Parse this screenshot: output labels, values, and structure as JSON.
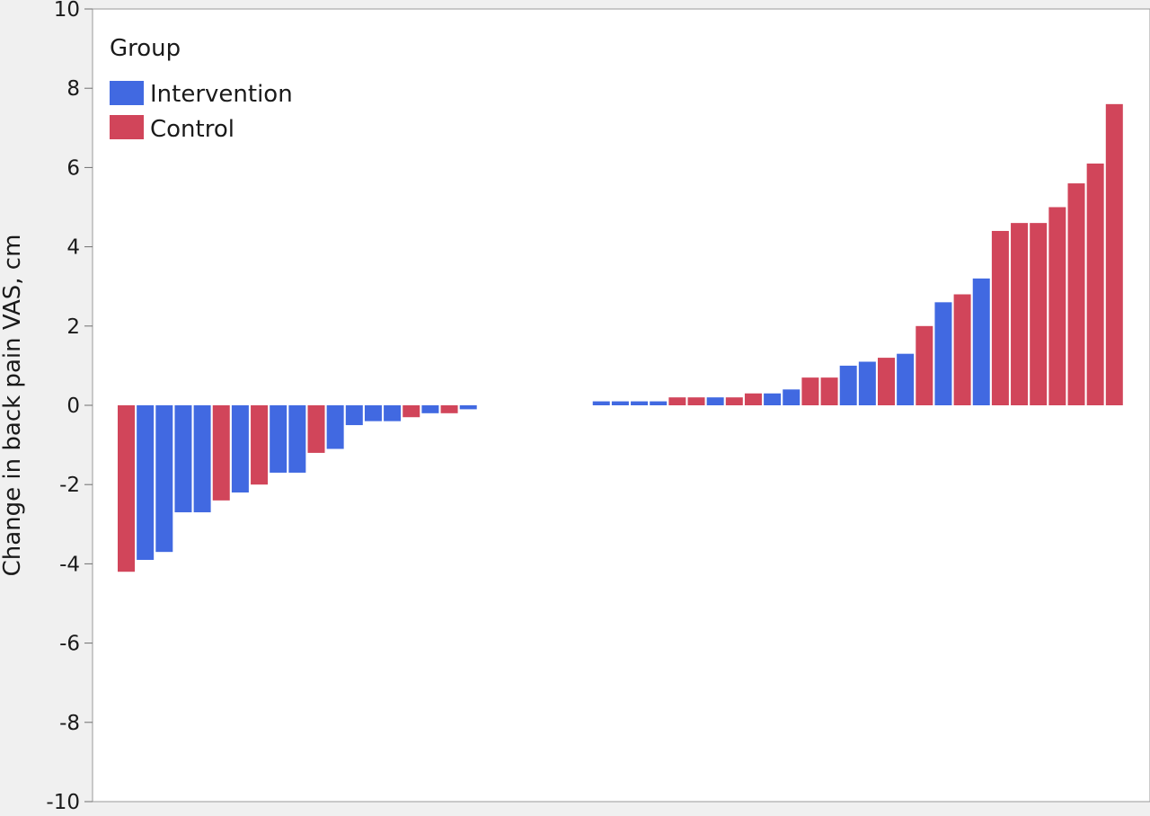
{
  "chart_data": {
    "type": "bar",
    "title": "",
    "xlabel": "",
    "ylabel": "Change in back pain VAS, cm",
    "ylim": [
      -10,
      10
    ],
    "yticks": [
      10,
      8,
      6,
      4,
      2,
      0,
      -2,
      -4,
      -6,
      -8,
      -10
    ],
    "grid": false,
    "legend": {
      "title": "Group",
      "placement": "top-left",
      "entries": [
        {
          "name": "Intervention",
          "color": "#4169e1"
        },
        {
          "name": "Control",
          "color": "#d1455a"
        }
      ]
    },
    "series": [
      {
        "name": "Intervention",
        "color": "#4169e1"
      },
      {
        "name": "Control",
        "color": "#d1455a"
      }
    ],
    "bars": [
      {
        "value": -4.2,
        "group": "Control"
      },
      {
        "value": -3.9,
        "group": "Intervention"
      },
      {
        "value": -3.7,
        "group": "Intervention"
      },
      {
        "value": -2.7,
        "group": "Intervention"
      },
      {
        "value": -2.7,
        "group": "Intervention"
      },
      {
        "value": -2.4,
        "group": "Control"
      },
      {
        "value": -2.2,
        "group": "Intervention"
      },
      {
        "value": -2.0,
        "group": "Control"
      },
      {
        "value": -1.7,
        "group": "Intervention"
      },
      {
        "value": -1.7,
        "group": "Intervention"
      },
      {
        "value": -1.2,
        "group": "Control"
      },
      {
        "value": -1.1,
        "group": "Intervention"
      },
      {
        "value": -0.5,
        "group": "Intervention"
      },
      {
        "value": -0.4,
        "group": "Intervention"
      },
      {
        "value": -0.4,
        "group": "Intervention"
      },
      {
        "value": -0.3,
        "group": "Control"
      },
      {
        "value": -0.2,
        "group": "Intervention"
      },
      {
        "value": -0.2,
        "group": "Control"
      },
      {
        "value": -0.1,
        "group": "Intervention"
      },
      {
        "value": 0,
        "group": "Intervention"
      },
      {
        "value": 0,
        "group": "Intervention"
      },
      {
        "value": 0,
        "group": "Intervention"
      },
      {
        "value": 0,
        "group": "Intervention"
      },
      {
        "value": 0,
        "group": "Intervention"
      },
      {
        "value": 0,
        "group": "Intervention"
      },
      {
        "value": 0.1,
        "group": "Intervention"
      },
      {
        "value": 0.1,
        "group": "Intervention"
      },
      {
        "value": 0.1,
        "group": "Intervention"
      },
      {
        "value": 0.1,
        "group": "Intervention"
      },
      {
        "value": 0.2,
        "group": "Control"
      },
      {
        "value": 0.2,
        "group": "Control"
      },
      {
        "value": 0.2,
        "group": "Intervention"
      },
      {
        "value": 0.2,
        "group": "Control"
      },
      {
        "value": 0.3,
        "group": "Control"
      },
      {
        "value": 0.3,
        "group": "Intervention"
      },
      {
        "value": 0.4,
        "group": "Intervention"
      },
      {
        "value": 0.7,
        "group": "Control"
      },
      {
        "value": 0.7,
        "group": "Control"
      },
      {
        "value": 1.0,
        "group": "Intervention"
      },
      {
        "value": 1.1,
        "group": "Intervention"
      },
      {
        "value": 1.2,
        "group": "Control"
      },
      {
        "value": 1.3,
        "group": "Intervention"
      },
      {
        "value": 2.0,
        "group": "Control"
      },
      {
        "value": 2.6,
        "group": "Intervention"
      },
      {
        "value": 2.8,
        "group": "Control"
      },
      {
        "value": 3.2,
        "group": "Intervention"
      },
      {
        "value": 4.4,
        "group": "Control"
      },
      {
        "value": 4.6,
        "group": "Control"
      },
      {
        "value": 4.6,
        "group": "Control"
      },
      {
        "value": 5.0,
        "group": "Control"
      },
      {
        "value": 5.6,
        "group": "Control"
      },
      {
        "value": 6.1,
        "group": "Control"
      },
      {
        "value": 7.6,
        "group": "Control"
      }
    ]
  }
}
